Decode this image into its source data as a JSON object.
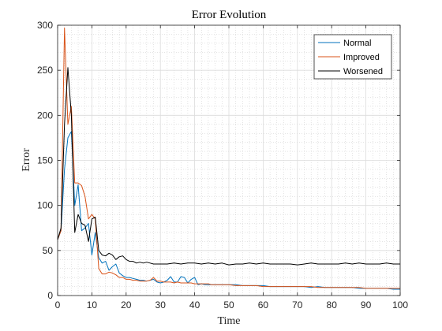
{
  "chart_data": {
    "type": "line",
    "title": "Error Evolution",
    "xlabel": "Time",
    "ylabel": "Error",
    "xlim": [
      0,
      100
    ],
    "ylim": [
      0,
      300
    ],
    "xticks": [
      0,
      10,
      20,
      30,
      40,
      50,
      60,
      70,
      80,
      90,
      100
    ],
    "yticks": [
      0,
      50,
      100,
      150,
      200,
      250,
      300
    ],
    "grid": true,
    "minor_grid": true,
    "legend_position": "top-right",
    "series": [
      {
        "name": "Normal",
        "color": "#0072BD",
        "x": [
          0,
          1,
          2,
          3,
          4,
          5,
          6,
          7,
          8,
          9,
          10,
          11,
          12,
          13,
          14,
          15,
          16,
          17,
          18,
          19,
          20,
          21,
          22,
          23,
          24,
          25,
          26,
          27,
          28,
          29,
          30,
          31,
          32,
          33,
          34,
          35,
          36,
          37,
          38,
          39,
          40,
          41,
          42,
          43,
          44,
          45,
          46,
          47,
          48,
          49,
          50,
          52,
          54,
          56,
          58,
          60,
          62,
          64,
          66,
          68,
          70,
          72,
          74,
          76,
          78,
          80,
          82,
          84,
          86,
          88,
          90,
          92,
          94,
          96,
          98,
          100
        ],
        "y": [
          62,
          72,
          140,
          175,
          182,
          100,
          123,
          72,
          75,
          80,
          45,
          70,
          42,
          36,
          38,
          28,
          32,
          35,
          25,
          22,
          20,
          20,
          19,
          18,
          17,
          17,
          16,
          17,
          18,
          15,
          14,
          15,
          17,
          21,
          15,
          15,
          21,
          20,
          14,
          18,
          20,
          12,
          13,
          12,
          12,
          12,
          12,
          12,
          12,
          12,
          12,
          12,
          11,
          11,
          11,
          11,
          10,
          10,
          10,
          10,
          10,
          10,
          9,
          10,
          9,
          9,
          9,
          9,
          9,
          8,
          8,
          8,
          8,
          8,
          7,
          7
        ]
      },
      {
        "name": "Improved",
        "color": "#D95319",
        "x": [
          0,
          1,
          2,
          3,
          4,
          5,
          6,
          7,
          8,
          9,
          10,
          11,
          12,
          13,
          14,
          15,
          16,
          17,
          18,
          19,
          20,
          21,
          22,
          23,
          24,
          25,
          26,
          27,
          28,
          29,
          30,
          31,
          32,
          33,
          34,
          35,
          36,
          37,
          38,
          39,
          40,
          41,
          42,
          43,
          44,
          45,
          46,
          47,
          48,
          49,
          50,
          52,
          54,
          56,
          58,
          60,
          62,
          64,
          66,
          68,
          70,
          72,
          74,
          76,
          78,
          80,
          82,
          84,
          86,
          88,
          90,
          92,
          94,
          96,
          98,
          100
        ],
        "y": [
          62,
          72,
          297,
          190,
          210,
          125,
          125,
          122,
          110,
          85,
          90,
          85,
          30,
          24,
          24,
          26,
          25,
          23,
          20,
          20,
          18,
          18,
          17,
          17,
          16,
          16,
          16,
          17,
          20,
          16,
          16,
          15,
          15,
          15,
          14,
          15,
          14,
          14,
          14,
          14,
          13,
          13,
          13,
          13,
          13,
          12,
          12,
          12,
          12,
          12,
          12,
          11,
          11,
          11,
          11,
          10,
          10,
          10,
          10,
          10,
          10,
          10,
          10,
          9,
          9,
          9,
          9,
          9,
          9,
          9,
          8,
          8,
          8,
          8,
          8,
          8
        ]
      },
      {
        "name": "Worsened",
        "color": "#000000",
        "x": [
          0,
          1,
          2,
          3,
          4,
          5,
          6,
          7,
          8,
          9,
          10,
          11,
          12,
          13,
          14,
          15,
          16,
          17,
          18,
          19,
          20,
          21,
          22,
          23,
          24,
          25,
          26,
          27,
          28,
          29,
          30,
          32,
          34,
          36,
          38,
          40,
          42,
          44,
          46,
          48,
          50,
          52,
          54,
          56,
          58,
          60,
          62,
          64,
          66,
          68,
          70,
          72,
          74,
          76,
          78,
          80,
          82,
          84,
          86,
          88,
          90,
          92,
          94,
          96,
          98,
          100
        ],
        "y": [
          62,
          75,
          190,
          253,
          200,
          70,
          90,
          80,
          78,
          60,
          85,
          87,
          50,
          45,
          44,
          47,
          45,
          40,
          43,
          44,
          40,
          38,
          38,
          36,
          37,
          36,
          37,
          36,
          35,
          35,
          35,
          35,
          36,
          35,
          36,
          36,
          35,
          36,
          35,
          36,
          34,
          35,
          35,
          36,
          35,
          36,
          35,
          35,
          35,
          35,
          34,
          35,
          36,
          35,
          35,
          35,
          35,
          36,
          35,
          36,
          35,
          35,
          35,
          36,
          35,
          35
        ]
      }
    ]
  }
}
